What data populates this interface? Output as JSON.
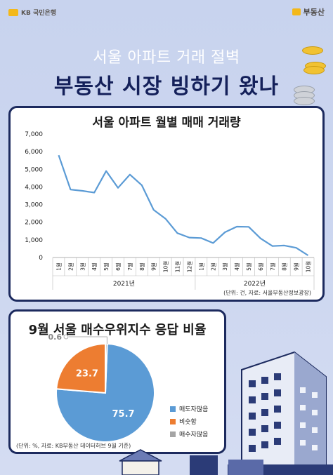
{
  "header": {
    "left_logo": "KB 국민은행",
    "right_logo": "부동산"
  },
  "titles": {
    "subtitle": "서울 아파트 거래 절벽",
    "main": "부동산 시장 빙하기 왔나"
  },
  "line_card": {
    "title": "서울 아파트 월별 매매 거래량",
    "source": "(단위: 건, 자료: 서울부동산정보광장)"
  },
  "pie_card": {
    "title": "9월 서울 매수우위지수 응답 비율",
    "source": "(단위: %, 자료: KB부동산 데이터허브 9월 기준)"
  },
  "colors": {
    "line": "#5b9bd5",
    "sell_more": "#5b9bd5",
    "similar": "#ed7d31",
    "buy_more": "#a5a5a5",
    "navy": "#1c2a5e"
  },
  "chart_data": [
    {
      "type": "line",
      "title": "서울 아파트 월별 매매 거래량",
      "categories": [
        "1월",
        "2월",
        "3월",
        "4월",
        "5월",
        "6월",
        "7월",
        "8월",
        "9월",
        "10월",
        "11월",
        "12월",
        "1월",
        "2월",
        "3월",
        "4월",
        "5월",
        "6월",
        "7월",
        "8월",
        "9월",
        "10월"
      ],
      "groups": [
        {
          "label": "2021년",
          "count": 12
        },
        {
          "label": "2022년",
          "count": 10
        }
      ],
      "series": [
        {
          "values": [
            5800,
            3850,
            3780,
            3680,
            4900,
            3950,
            4700,
            4100,
            2700,
            2200,
            1380,
            1130,
            1100,
            820,
            1430,
            1750,
            1740,
            1080,
            650,
            680,
            550,
            120
          ]
        }
      ],
      "yticks": [
        "0",
        "1,000",
        "2,000",
        "3,000",
        "4,000",
        "5,000",
        "6,000",
        "7,000"
      ],
      "ylim": [
        0,
        7000
      ],
      "grid": false
    },
    {
      "type": "pie",
      "title": "9월 서울 매수우위지수 응답 비율",
      "labels": [
        "매도자많음",
        "비슷함",
        "매수자많음"
      ],
      "values": [
        75.7,
        23.7,
        0.6
      ],
      "value_labels": [
        "75.7",
        "23.7",
        "0.6"
      ],
      "legend": "right"
    }
  ]
}
